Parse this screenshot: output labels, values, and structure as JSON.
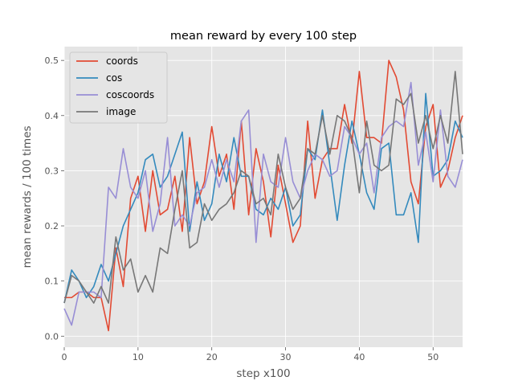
{
  "chart_data": {
    "type": "line",
    "title": "mean reward by every 100 step",
    "xlabel": "step x100",
    "ylabel": "mean rewards / 100 times",
    "xlim": [
      0,
      54
    ],
    "ylim": [
      -0.02,
      0.525
    ],
    "x_ticks": [
      0,
      10,
      20,
      30,
      40,
      50
    ],
    "y_ticks": [
      0.0,
      0.1,
      0.2,
      0.3,
      0.4,
      0.5
    ],
    "x_tick_labels": [
      "0",
      "10",
      "20",
      "30",
      "40",
      "50"
    ],
    "y_tick_labels": [
      "0.0",
      "0.1",
      "0.2",
      "0.3",
      "0.4",
      "0.5"
    ],
    "grid": true,
    "legend_position": "top-left",
    "x": [
      0,
      1,
      2,
      3,
      4,
      5,
      6,
      7,
      8,
      9,
      10,
      11,
      12,
      13,
      14,
      15,
      16,
      17,
      18,
      19,
      20,
      21,
      22,
      23,
      24,
      25,
      26,
      27,
      28,
      29,
      30,
      31,
      32,
      33,
      34,
      35,
      36,
      37,
      38,
      39,
      40,
      41,
      42,
      43,
      44,
      45,
      46,
      47,
      48,
      49,
      50,
      51,
      52,
      53,
      54
    ],
    "series": [
      {
        "name": "coords",
        "color": "#E24A33",
        "values": [
          0.07,
          0.07,
          0.08,
          0.08,
          0.07,
          0.07,
          0.01,
          0.16,
          0.09,
          0.25,
          0.29,
          0.19,
          0.3,
          0.22,
          0.23,
          0.29,
          0.19,
          0.36,
          0.24,
          0.28,
          0.38,
          0.29,
          0.33,
          0.23,
          0.39,
          0.22,
          0.34,
          0.28,
          0.18,
          0.31,
          0.24,
          0.17,
          0.2,
          0.39,
          0.25,
          0.32,
          0.34,
          0.34,
          0.42,
          0.35,
          0.48,
          0.36,
          0.36,
          0.35,
          0.5,
          0.47,
          0.41,
          0.28,
          0.24,
          0.38,
          0.42,
          0.27,
          0.3,
          0.36,
          0.4
        ]
      },
      {
        "name": "cos",
        "color": "#348ABD",
        "values": [
          0.06,
          0.12,
          0.1,
          0.07,
          0.09,
          0.13,
          0.1,
          0.15,
          0.2,
          0.23,
          0.26,
          0.32,
          0.33,
          0.27,
          0.29,
          0.33,
          0.37,
          0.19,
          0.28,
          0.21,
          0.24,
          0.33,
          0.28,
          0.36,
          0.29,
          0.29,
          0.23,
          0.22,
          0.25,
          0.23,
          0.27,
          0.2,
          0.22,
          0.34,
          0.32,
          0.41,
          0.31,
          0.21,
          0.31,
          0.39,
          0.33,
          0.26,
          0.23,
          0.34,
          0.35,
          0.22,
          0.22,
          0.26,
          0.17,
          0.44,
          0.29,
          0.3,
          0.32,
          0.39,
          0.36
        ]
      },
      {
        "name": "coscoords",
        "color": "#988ED5",
        "values": [
          0.05,
          0.02,
          0.08,
          0.08,
          0.08,
          0.07,
          0.27,
          0.25,
          0.34,
          0.27,
          0.25,
          0.3,
          0.19,
          0.24,
          0.36,
          0.2,
          0.22,
          0.2,
          0.26,
          0.27,
          0.32,
          0.27,
          0.32,
          0.28,
          0.39,
          0.41,
          0.17,
          0.33,
          0.28,
          0.27,
          0.36,
          0.28,
          0.25,
          0.3,
          0.33,
          0.32,
          0.29,
          0.3,
          0.38,
          0.36,
          0.33,
          0.35,
          0.26,
          0.36,
          0.38,
          0.39,
          0.38,
          0.46,
          0.31,
          0.37,
          0.28,
          0.41,
          0.29,
          0.27,
          0.32
        ]
      },
      {
        "name": "image",
        "color": "#777777",
        "values": [
          0.06,
          0.11,
          0.1,
          0.08,
          0.06,
          0.09,
          0.06,
          0.18,
          0.12,
          0.14,
          0.08,
          0.11,
          0.08,
          0.16,
          0.15,
          0.23,
          0.3,
          0.16,
          0.17,
          0.24,
          0.21,
          0.23,
          0.24,
          0.26,
          0.3,
          0.29,
          0.24,
          0.25,
          0.22,
          0.33,
          0.27,
          0.23,
          0.25,
          0.34,
          0.33,
          0.4,
          0.33,
          0.4,
          0.39,
          0.36,
          0.26,
          0.39,
          0.31,
          0.3,
          0.31,
          0.43,
          0.42,
          0.44,
          0.35,
          0.4,
          0.34,
          0.4,
          0.35,
          0.48,
          0.33
        ]
      }
    ]
  },
  "style": {
    "plot_background": "#E5E5E5",
    "grid_color": "#ffffff",
    "text_color": "#555555"
  }
}
